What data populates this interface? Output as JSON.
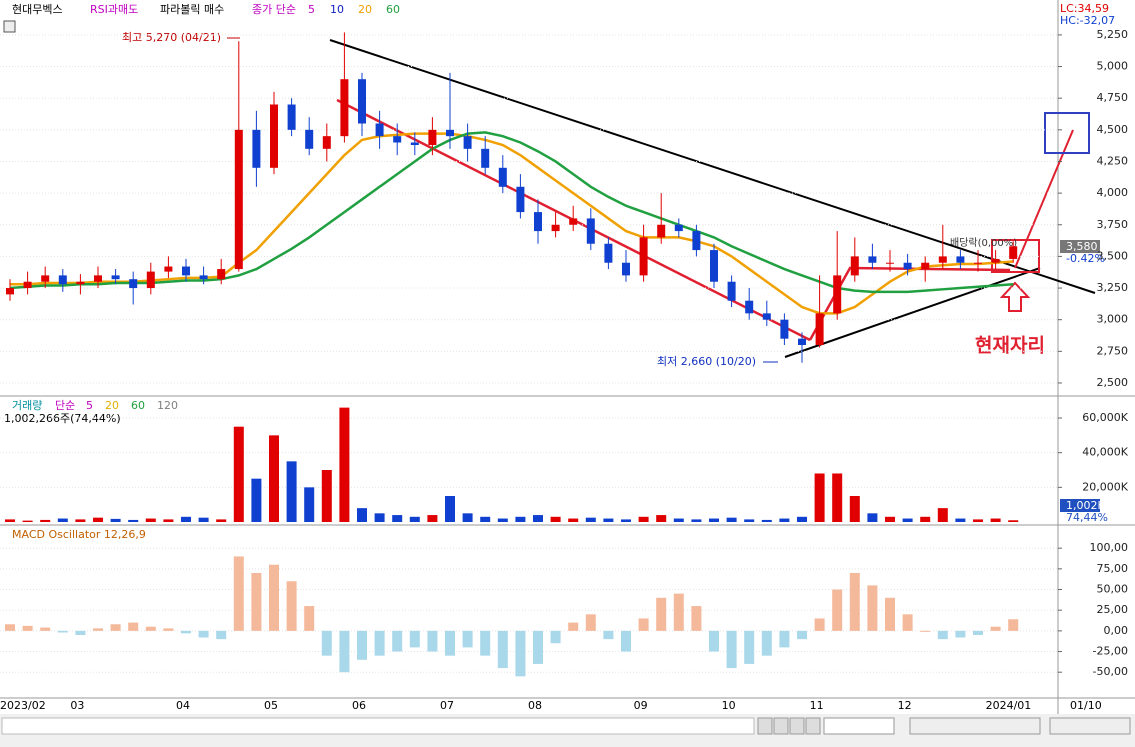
{
  "chart_data": [
    {
      "type": "candlestick",
      "title": "현대무벡스",
      "indicators": [
        "RSI과매도",
        "파라볼릭 매수"
      ],
      "ma_prefix": "종가 단순",
      "ma_legend": [
        {
          "name": "5",
          "color": "#c000c0"
        },
        {
          "name": "10",
          "color": "#1020c0"
        }
      ],
      "up_color": "#e00000",
      "down_color": "#1040d0",
      "categories": [
        "2023/02",
        null,
        null,
        null,
        "03",
        null,
        null,
        null,
        null,
        null,
        "04",
        null,
        null,
        null,
        null,
        "05",
        null,
        null,
        null,
        null,
        "06",
        null,
        null,
        null,
        null,
        "07",
        null,
        null,
        null,
        null,
        "08",
        null,
        null,
        null,
        null,
        null,
        "09",
        null,
        null,
        null,
        null,
        "10",
        null,
        null,
        null,
        null,
        "11",
        null,
        null,
        null,
        null,
        "12",
        null,
        null,
        null,
        null,
        "2024/01",
        null
      ],
      "open": [
        3200,
        3250,
        3300,
        3350,
        3280,
        3300,
        3350,
        3320,
        3250,
        3380,
        3420,
        3350,
        3320,
        3400,
        4500,
        4200,
        4700,
        4500,
        4350,
        4450,
        4900,
        4550,
        4450,
        4400,
        4380,
        4500,
        4450,
        4350,
        4200,
        4050,
        3850,
        3700,
        3750,
        3800,
        3600,
        3450,
        3350,
        3650,
        3750,
        3700,
        3550,
        3300,
        3150,
        3050,
        3000,
        2850,
        2800,
        3050,
        3350,
        3500,
        3450,
        3450,
        3400,
        3450,
        3500,
        3450,
        3450,
        3480
      ],
      "high": [
        3320,
        3380,
        3420,
        3400,
        3360,
        3420,
        3400,
        3380,
        3450,
        3500,
        3480,
        3420,
        3480,
        5200,
        4650,
        4800,
        4750,
        4600,
        4550,
        5270,
        4950,
        4650,
        4550,
        4480,
        4600,
        4950,
        4550,
        4450,
        4300,
        4150,
        3950,
        3850,
        3900,
        3880,
        3650,
        3550,
        3750,
        4000,
        3800,
        3750,
        3600,
        3350,
        3250,
        3150,
        3050,
        2900,
        3350,
        3700,
        3650,
        3600,
        3550,
        3520,
        3500,
        3750,
        3550,
        3550,
        3550,
        3620
      ],
      "low": [
        3150,
        3200,
        3250,
        3220,
        3200,
        3250,
        3280,
        3120,
        3200,
        3330,
        3300,
        3280,
        3280,
        3380,
        4050,
        4150,
        4450,
        4300,
        4250,
        4400,
        4450,
        4350,
        4300,
        4300,
        4300,
        4350,
        4250,
        4150,
        4000,
        3800,
        3600,
        3650,
        3700,
        3550,
        3400,
        3300,
        3300,
        3600,
        3650,
        3500,
        3250,
        3100,
        3000,
        2950,
        2800,
        2660,
        2780,
        3000,
        3300,
        3400,
        3380,
        3350,
        3300,
        3400,
        3400,
        3380,
        3400,
        3450
      ],
      "close": [
        3250,
        3300,
        3350,
        3280,
        3300,
        3350,
        3320,
        3250,
        3380,
        3420,
        3350,
        3320,
        3400,
        4500,
        4200,
        4700,
        4500,
        4350,
        4450,
        4900,
        4550,
        4450,
        4400,
        4380,
        4500,
        4450,
        4350,
        4200,
        4050,
        3850,
        3700,
        3750,
        3800,
        3600,
        3450,
        3350,
        3650,
        3750,
        3700,
        3550,
        3300,
        3150,
        3050,
        3000,
        2850,
        2800,
        3050,
        3350,
        3500,
        3450,
        3450,
        3400,
        3450,
        3500,
        3450,
        3450,
        3480,
        3580
      ],
      "series": [
        {
          "name": "20",
          "color": "#f0a000",
          "values": [
            3280,
            3280,
            3290,
            3290,
            3290,
            3300,
            3300,
            3300,
            3310,
            3320,
            3330,
            3330,
            3340,
            3450,
            3550,
            3700,
            3850,
            4000,
            4150,
            4300,
            4420,
            4450,
            4460,
            4470,
            4470,
            4470,
            4450,
            4420,
            4380,
            4300,
            4200,
            4100,
            4000,
            3900,
            3800,
            3700,
            3650,
            3650,
            3650,
            3620,
            3580,
            3500,
            3400,
            3300,
            3200,
            3100,
            3050,
            3050,
            3100,
            3200,
            3300,
            3380,
            3420,
            3430,
            3440,
            3440,
            3450,
            3460
          ]
        },
        {
          "name": "60",
          "color": "#20a040",
          "values": [
            3250,
            3260,
            3270,
            3270,
            3280,
            3280,
            3290,
            3290,
            3290,
            3300,
            3310,
            3310,
            3320,
            3350,
            3400,
            3480,
            3560,
            3650,
            3750,
            3850,
            3950,
            4050,
            4150,
            4250,
            4350,
            4420,
            4470,
            4480,
            4450,
            4400,
            4330,
            4250,
            4150,
            4050,
            3970,
            3900,
            3850,
            3800,
            3750,
            3700,
            3650,
            3580,
            3520,
            3460,
            3400,
            3350,
            3300,
            3250,
            3230,
            3220,
            3220,
            3220,
            3230,
            3240,
            3250,
            3260,
            3270,
            3280
          ]
        }
      ],
      "ylim": [
        2405,
        5510
      ],
      "yticks": [
        {
          "value": 2500,
          "label": "2,500"
        },
        {
          "value": 2750,
          "label": "2,750"
        },
        {
          "value": 3000,
          "label": "3,000"
        },
        {
          "value": 3250,
          "label": "3,250"
        },
        {
          "value": 3500,
          "label": "3,500"
        },
        {
          "value": 3750,
          "label": "3,750"
        },
        {
          "value": 4000,
          "label": "4,000"
        },
        {
          "value": 4250,
          "label": "4,250"
        },
        {
          "value": 4500,
          "label": "4,500"
        },
        {
          "value": 4750,
          "label": "4,750"
        },
        {
          "value": 5000,
          "label": "5,000"
        },
        {
          "value": 5250,
          "label": "5,250"
        }
      ],
      "grid": true,
      "high_label": "최고 5,270 (04/21)",
      "low_label": "최저 2,660 (10/20)",
      "dividend_label": "배당락(0,00%)",
      "current_label": "현재자리",
      "price_badge": "3,580",
      "change": "-0.42%",
      "lc": "LC:34,59",
      "hc": "HC:-32,07",
      "current_date": "01/10"
    },
    {
      "type": "bar",
      "title": "거래량",
      "ma_prefix": "단순",
      "ma_legend": [
        {
          "name": "5",
          "color": "#c000c0"
        },
        {
          "name": "20",
          "color": "#e0b000"
        },
        {
          "name": "60",
          "color": "#20a040"
        },
        {
          "name": "120",
          "color": "#808080"
        }
      ],
      "info": "1,002,266주(74,44%)",
      "volume_badge": "1,002K",
      "ratio_badge": "74,44%",
      "values": [
        1500,
        800,
        1200,
        2000,
        1500,
        2500,
        1800,
        1200,
        2000,
        1500,
        3000,
        2500,
        1500,
        55000,
        25000,
        50000,
        35000,
        20000,
        30000,
        66000,
        8000,
        5000,
        4000,
        3000,
        4000,
        15000,
        5000,
        3000,
        2000,
        3000,
        4000,
        3000,
        2000,
        2500,
        2000,
        1500,
        3000,
        4000,
        2000,
        1500,
        2000,
        2500,
        1500,
        1200,
        2000,
        3000,
        28000,
        28000,
        15000,
        5000,
        3000,
        2000,
        3000,
        8000,
        2000,
        1500,
        2000,
        1002
      ],
      "ylim": [
        0,
        70400
      ],
      "yticks": [
        {
          "value": 20000,
          "label": "20,000K"
        },
        {
          "value": 40000,
          "label": "40,000K"
        },
        {
          "value": 60000,
          "label": "60,000K"
        }
      ],
      "grid": true
    },
    {
      "type": "bar",
      "title": "MACD Oscillator 12,26,9",
      "up_color": "#f4b89a",
      "down_color": "#a8d8ea",
      "values": [
        8,
        6,
        4,
        -2,
        -5,
        3,
        8,
        10,
        5,
        3,
        -3,
        -8,
        -10,
        90,
        70,
        80,
        60,
        30,
        -30,
        -50,
        -35,
        -30,
        -25,
        -20,
        -25,
        -30,
        -20,
        -30,
        -45,
        -55,
        -40,
        -15,
        10,
        20,
        -10,
        -25,
        15,
        40,
        45,
        30,
        -25,
        -45,
        -40,
        -30,
        -20,
        -10,
        15,
        50,
        70,
        55,
        40,
        20,
        0,
        -10,
        -8,
        -5,
        5,
        14
      ],
      "ylim": [
        -80,
        122
      ],
      "yticks": [
        {
          "value": -50,
          "label": "-50,00"
        },
        {
          "value": -25,
          "label": "-25,00"
        },
        {
          "value": 0,
          "label": "0,00"
        },
        {
          "value": 25,
          "label": "25,00"
        },
        {
          "value": 50,
          "label": "50,00"
        },
        {
          "value": 75,
          "label": "75,00"
        },
        {
          "value": 100,
          "label": "100,00"
        }
      ],
      "grid": true
    }
  ]
}
